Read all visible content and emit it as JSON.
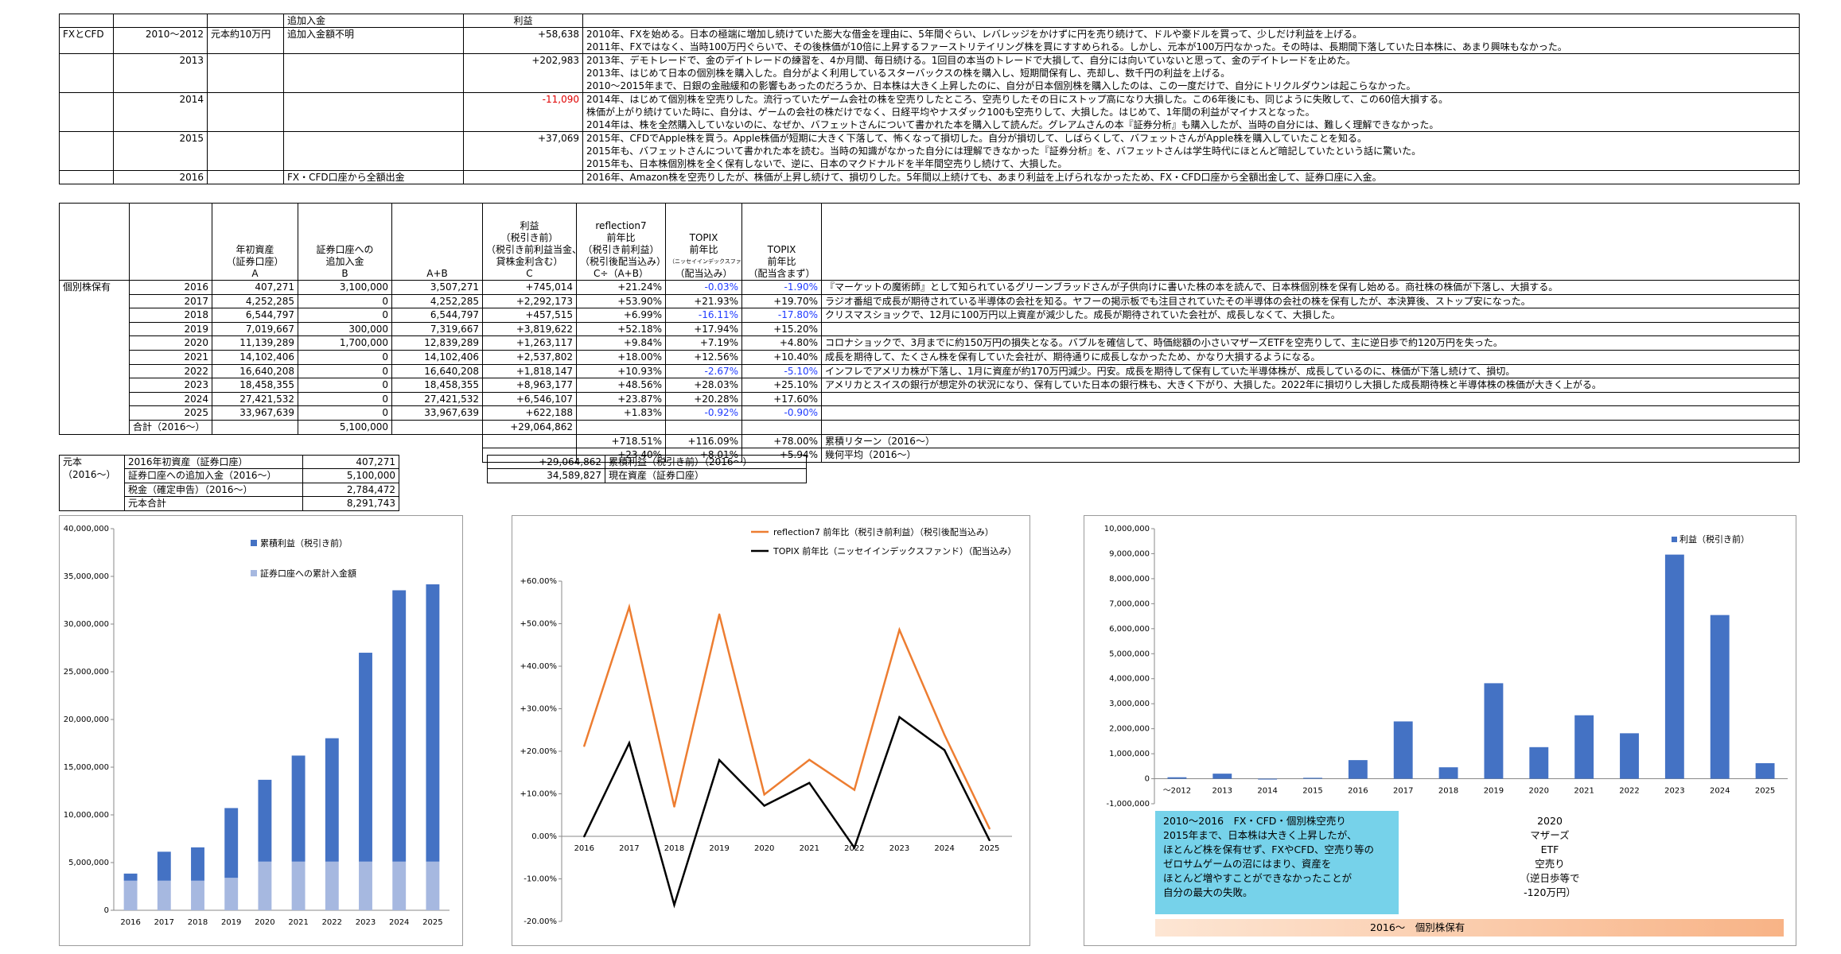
{
  "fx_table": {
    "header": {
      "col3": "追加入金",
      "col4": "利益"
    },
    "rows": [
      {
        "label": "FXとCFD",
        "year": "2010～2012",
        "principal": "元本約10万円",
        "deposit": "追加入金額不明",
        "profit": "+58,638",
        "notes": [
          "2010年、FXを始める。日本の極端に増加し続けていた膨大な借金を理由に、5年間ぐらい、レバレッジをかけずに円を売り続けて、ドルや豪ドルを買って、少しだけ利益を上げる。",
          "2011年、FXではなく、当時100万円ぐらいで、その後株価が10倍に上昇するファーストリテイリング株を買にすすめられる。しかし、元本が100万円なかった。その時は、長期間下落していた日本株に、あまり興味もなかった。"
        ]
      },
      {
        "label": "",
        "year": "2013",
        "principal": "",
        "deposit": "",
        "profit": "+202,983",
        "notes": [
          "2013年、デモトレードで、金のデイトレードの練習を、4か月間、毎日続ける。1回目の本当のトレードで大損して、自分には向いていないと思って、金のデイトレードを止めた。",
          "2013年、はじめて日本の個別株を購入した。自分がよく利用しているスターバックスの株を購入し、短期間保有し、売却し、数千円の利益を上げる。",
          "2010～2015年まで、日銀の金融緩和の影響もあったのだろうか、日本株は大きく上昇したのに、自分が日本個別株を購入したのは、この一度だけで、自分にトリクルダウンは起こらなかった。"
        ]
      },
      {
        "label": "",
        "year": "2014",
        "principal": "",
        "deposit": "",
        "profit": "-11,090",
        "notes": [
          "2014年、はじめて個別株を空売りした。流行っていたゲーム会社の株を空売りしたところ、空売りしたその日にストップ高になり大損した。この6年後にも、同じように失敗して、この60倍大損する。",
          "株価が上がり続けていた時に、自分は、ゲームの会社の株だけでなく、日経平均やナスダック100も空売りして、大損した。はじめて、1年間の利益がマイナスとなった。",
          "2014年は、株を全然購入していないのに、なぜか、バフェットさんについて書かれた本を購入して読んだ。グレアムさんの本『証券分析』も購入したが、当時の自分には、難しく理解できなかった。"
        ]
      },
      {
        "label": "",
        "year": "2015",
        "principal": "",
        "deposit": "",
        "profit": "+37,069",
        "notes": [
          "2015年、CFDでApple株を買う。Apple株価が短期に大きく下落して、怖くなって損切した。自分が損切して、しばらくして、バフェットさんがApple株を購入していたことを知る。",
          "2015年も、バフェットさんについて書かれた本を読む。当時の知識がなかった自分には理解できなかった『証券分析』を、バフェットさんは学生時代にほとんど暗記していたという話に驚いた。",
          "2015年も、日本株個別株を全く保有しないで、逆に、日本のマクドナルドを半年間空売りし続けて、大損した。"
        ]
      },
      {
        "label": "",
        "year": "2016",
        "principal": "",
        "deposit": "FX・CFD口座から全額出金",
        "profit": "",
        "notes": [
          "2016年、Amazon株を空売りしたが、株価が上昇し続けて、損切りした。5年間以上続けても、あまり利益を上げられなかったため、FX・CFD口座から全額出金して、証券口座に入金。"
        ]
      }
    ]
  },
  "stock_table": {
    "headers": {
      "assets": [
        "年初資産",
        "（証券口座）",
        "A"
      ],
      "deposit": [
        "証券口座への",
        "追加入金",
        "B"
      ],
      "sum": [
        "",
        "",
        "A+B"
      ],
      "profit": [
        "利益",
        "（税引き前）",
        "（税引き前利益当金、",
        "貸株金利含む）",
        "C"
      ],
      "r7": [
        "reflection7",
        "前年比",
        "（税引き前利益）",
        "（税引後配当込み）",
        "C÷（A+B）"
      ],
      "topix_div": [
        "TOPIX",
        "前年比",
        "（ニッセイインデックスファンド）",
        "（配当込み）"
      ],
      "topix_nodiv": [
        "TOPIX",
        "前年比",
        "",
        "（配当含まず）"
      ]
    },
    "category": "個別株保有",
    "rows": [
      {
        "year": "2016",
        "a": "407,271",
        "b": "3,100,000",
        "ab": "3,507,271",
        "c": "+745,014",
        "r7": "+21.24%",
        "td": "-0.03%",
        "tn": "-1.90%",
        "note": "『マーケットの魔術師』として知られているグリーンブラッドさんが子供向けに書いた株の本を読んで、日本株個別株を保有し始める。商社株の株価が下落し、大損する。"
      },
      {
        "year": "2017",
        "a": "4,252,285",
        "b": "0",
        "ab": "4,252,285",
        "c": "+2,292,173",
        "r7": "+53.90%",
        "td": "+21.93%",
        "tn": "+19.70%",
        "note": "ラジオ番組で成長が期待されている半導体の会社を知る。ヤフーの掲示板でも注目されていたその半導体の会社の株を保有したが、本決算後、ストップ安になった。"
      },
      {
        "year": "2018",
        "a": "6,544,797",
        "b": "0",
        "ab": "6,544,797",
        "c": "+457,515",
        "r7": "+6.99%",
        "td": "-16.11%",
        "tn": "-17.80%",
        "note": "クリスマスショックで、12月に100万円以上資産が減少した。成長が期待されていた会社が、成長しなくて、大損した。"
      },
      {
        "year": "2019",
        "a": "7,019,667",
        "b": "300,000",
        "ab": "7,319,667",
        "c": "+3,819,622",
        "r7": "+52.18%",
        "td": "+17.94%",
        "tn": "+15.20%",
        "note": ""
      },
      {
        "year": "2020",
        "a": "11,139,289",
        "b": "1,700,000",
        "ab": "12,839,289",
        "c": "+1,263,117",
        "r7": "+9.84%",
        "td": "+7.19%",
        "tn": "+4.80%",
        "note": "コロナショックで、3月までに約150万円の損失となる。バブルを確信して、時価総額の小さいマザーズETFを空売りして、主に逆日歩で約120万円を失った。"
      },
      {
        "year": "2021",
        "a": "14,102,406",
        "b": "0",
        "ab": "14,102,406",
        "c": "+2,537,802",
        "r7": "+18.00%",
        "td": "+12.56%",
        "tn": "+10.40%",
        "note": "成長を期待して、たくさん株を保有していた会社が、期待通りに成長しなかったため、かなり大損するようになる。"
      },
      {
        "year": "2022",
        "a": "16,640,208",
        "b": "0",
        "ab": "16,640,208",
        "c": "+1,818,147",
        "r7": "+10.93%",
        "td": "-2.67%",
        "tn": "-5.10%",
        "note": "インフレでアメリカ株が下落し、1月に資産が約170万円減少。円安。成長を期待して保有していた半導体株が、成長しているのに、株価が下落し続けて、損切。"
      },
      {
        "year": "2023",
        "a": "18,458,355",
        "b": "0",
        "ab": "18,458,355",
        "c": "+8,963,177",
        "r7": "+48.56%",
        "td": "+28.03%",
        "tn": "+25.10%",
        "note": "アメリカとスイスの銀行が想定外の状況になり、保有していた日本の銀行株も、大きく下がり、大損した。2022年に損切りし大損した成長期待株と半導体株の株価が大きく上がる。"
      },
      {
        "year": "2024",
        "a": "27,421,532",
        "b": "0",
        "ab": "27,421,532",
        "c": "+6,546,107",
        "r7": "+23.87%",
        "td": "+20.28%",
        "tn": "+17.60%",
        "note": ""
      },
      {
        "year": "2025",
        "a": "33,967,639",
        "b": "0",
        "ab": "33,967,639",
        "c": "+622,188",
        "r7": "+1.83%",
        "td": "-0.92%",
        "tn": "-0.90%",
        "note": ""
      }
    ],
    "total": {
      "label": "合計（2016～）",
      "b": "5,100,000",
      "c": "+29,064,862"
    },
    "cumulative": {
      "r7": "+718.51%",
      "td": "+116.09%",
      "tn": "+78.00%",
      "label": "累積リターン（2016～）"
    },
    "average": {
      "r7": "+23.40%",
      "td": "+8.01%",
      "tn": "+5.94%",
      "label": "幾何平均（2016～）"
    }
  },
  "principal_table": {
    "label": [
      "元本",
      "（2016～）"
    ],
    "rows": [
      {
        "name": "2016年初資産（証券口座）",
        "value": "407,271"
      },
      {
        "name": "証券口座への追加入金（2016～）",
        "value": "5,100,000"
      },
      {
        "name": "税金（確定申告）（2016～）",
        "value": "2,784,472"
      },
      {
        "name": "元本合計",
        "value": "8,291,743"
      }
    ]
  },
  "summary_table": {
    "rows": [
      {
        "value": "+29,064,862",
        "name": "累積利益（税引き前）（2016～）"
      },
      {
        "value": "34,589,827",
        "name": "現在資産（証券口座）"
      }
    ]
  },
  "chart_data": [
    {
      "type": "bar",
      "stacked": true,
      "categories": [
        "2016",
        "2017",
        "2018",
        "2019",
        "2020",
        "2021",
        "2022",
        "2023",
        "2024",
        "2025"
      ],
      "series": [
        {
          "name": "証券口座への累計入金額",
          "color": "#a6b8e0",
          "values": [
            3100000,
            3100000,
            3100000,
            3400000,
            5100000,
            5100000,
            5100000,
            5100000,
            5100000,
            5100000
          ]
        },
        {
          "name": "累積利益（税引き前）",
          "color": "#4472c4",
          "values": [
            745014,
            3037187,
            3494702,
            7314324,
            8577441,
            11115243,
            12933390,
            21896567,
            28442674,
            29064862
          ]
        }
      ],
      "yticks": [
        "0",
        "5,000,000",
        "10,000,000",
        "15,000,000",
        "20,000,000",
        "25,000,000",
        "30,000,000",
        "35,000,000",
        "40,000,000"
      ],
      "ylim": [
        0,
        40000000
      ],
      "legend": "top-left"
    },
    {
      "type": "line",
      "categories": [
        "2016",
        "2017",
        "2018",
        "2019",
        "2020",
        "2021",
        "2022",
        "2023",
        "2024",
        "2025"
      ],
      "series": [
        {
          "name": "reflection7 前年比（税引き前利益）（税引後配当込み）",
          "color": "#ed7d31",
          "values": [
            21.24,
            53.9,
            6.99,
            52.18,
            9.84,
            18.0,
            10.93,
            48.56,
            23.87,
            1.83
          ]
        },
        {
          "name": "TOPIX 前年比（ニッセイインデックスファンド）（配当込み）",
          "color": "#000000",
          "values": [
            -0.03,
            21.93,
            -16.11,
            17.94,
            7.19,
            12.56,
            -2.67,
            28.03,
            20.28,
            -0.92
          ]
        }
      ],
      "yticks": [
        "-20.00%",
        "-10.00%",
        "0.00%",
        "+10.00%",
        "+20.00%",
        "+30.00%",
        "+40.00%",
        "+50.00%",
        "+60.00%"
      ],
      "ylim": [
        -20,
        60
      ],
      "legend": "top"
    },
    {
      "type": "bar",
      "categories": [
        "～2012",
        "2013",
        "2014",
        "2015",
        "2016",
        "2017",
        "2018",
        "2019",
        "2020",
        "2021",
        "2022",
        "2023",
        "2024",
        "2025"
      ],
      "series": [
        {
          "name": "利益（税引き前）",
          "color": "#4472c4",
          "values": [
            58638,
            202983,
            -11090,
            37069,
            745014,
            2292173,
            457515,
            3819622,
            1263117,
            2537802,
            1818147,
            8963177,
            6546107,
            622188
          ]
        }
      ],
      "yticks": [
        "-1,000,000",
        "0",
        "1,000,000",
        "2,000,000",
        "3,000,000",
        "4,000,000",
        "5,000,000",
        "6,000,000",
        "7,000,000",
        "8,000,000",
        "9,000,000",
        "10,000,000"
      ],
      "ylim": [
        -1000000,
        10000000
      ],
      "legend": "top-right"
    }
  ],
  "annotations": {
    "note1": [
      "2010～2016　FX・CFD・個別株空売り",
      "2015年まで、日本株は大きく上昇したが、",
      "ほとんど株を保有せず、FXやCFD、空売り等の",
      "ゼロサムゲームの沼にはまり、資産を",
      "ほとんど増やすことができなかったことが",
      "自分の最大の失敗。"
    ],
    "note2": [
      "2020",
      "マザーズ",
      "ETF",
      "空売り",
      "（逆日歩等で",
      "-120万円）"
    ],
    "note3": "2016～　個別株保有"
  }
}
